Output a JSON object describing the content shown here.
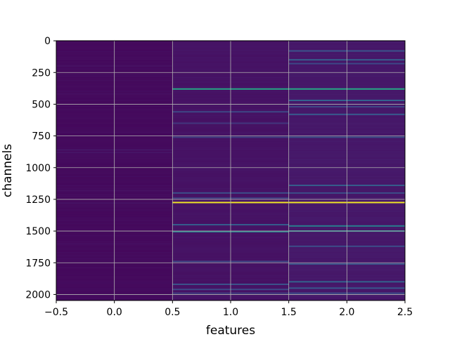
{
  "chart_data": {
    "type": "heatmap",
    "xlabel": "features",
    "ylabel": "channels",
    "xlim": [
      -0.5,
      2.5
    ],
    "ylim": [
      2047.5,
      -0.5
    ],
    "n_rows": 2048,
    "n_cols": 3,
    "colormap": "viridis",
    "grid": true,
    "grid_color": "#b0b0b0",
    "xticks": [
      -0.5,
      0.0,
      0.5,
      1.0,
      1.5,
      2.0,
      2.5
    ],
    "xtick_labels": [
      "−0.5",
      "0.0",
      "0.5",
      "1.0",
      "1.5",
      "2.0",
      "2.5"
    ],
    "yticks": [
      0,
      250,
      500,
      750,
      1000,
      1250,
      1500,
      1750,
      2000
    ],
    "ytick_labels": [
      "0",
      "250",
      "500",
      "750",
      "1000",
      "1250",
      "1500",
      "1750",
      "2000"
    ],
    "columns": [
      {
        "feature": 0,
        "background": 0.03,
        "bands": [
          {
            "channel": 200,
            "value": 0.06
          },
          {
            "channel": 420,
            "value": 0.05
          },
          {
            "channel": 860,
            "value": 0.08
          },
          {
            "channel": 880,
            "value": 0.07
          },
          {
            "channel": 1180,
            "value": 0.06
          },
          {
            "channel": 1280,
            "value": 0.06
          },
          {
            "channel": 1600,
            "value": 0.05
          }
        ]
      },
      {
        "feature": 1,
        "background": 0.06,
        "bands": [
          {
            "channel": 380,
            "value": 0.6
          },
          {
            "channel": 560,
            "value": 0.22
          },
          {
            "channel": 650,
            "value": 0.18
          },
          {
            "channel": 760,
            "value": 0.2
          },
          {
            "channel": 1200,
            "value": 0.24
          },
          {
            "channel": 1240,
            "value": 0.2
          },
          {
            "channel": 1275,
            "value": 0.98
          },
          {
            "channel": 1450,
            "value": 0.3
          },
          {
            "channel": 1505,
            "value": 0.45
          },
          {
            "channel": 1740,
            "value": 0.22
          },
          {
            "channel": 1920,
            "value": 0.25
          },
          {
            "channel": 1960,
            "value": 0.22
          },
          {
            "channel": 1990,
            "value": 0.2
          }
        ]
      },
      {
        "feature": 2,
        "background": 0.08,
        "bands": [
          {
            "channel": 80,
            "value": 0.25
          },
          {
            "channel": 150,
            "value": 0.3
          },
          {
            "channel": 180,
            "value": 0.22
          },
          {
            "channel": 380,
            "value": 0.6
          },
          {
            "channel": 470,
            "value": 0.32
          },
          {
            "channel": 520,
            "value": 0.22
          },
          {
            "channel": 580,
            "value": 0.28
          },
          {
            "channel": 760,
            "value": 0.24
          },
          {
            "channel": 1140,
            "value": 0.3
          },
          {
            "channel": 1200,
            "value": 0.24
          },
          {
            "channel": 1275,
            "value": 0.98
          },
          {
            "channel": 1460,
            "value": 0.42
          },
          {
            "channel": 1500,
            "value": 0.45
          },
          {
            "channel": 1620,
            "value": 0.24
          },
          {
            "channel": 1760,
            "value": 0.26
          },
          {
            "channel": 1900,
            "value": 0.32
          },
          {
            "channel": 1950,
            "value": 0.28
          },
          {
            "channel": 1990,
            "value": 0.24
          }
        ]
      }
    ]
  }
}
